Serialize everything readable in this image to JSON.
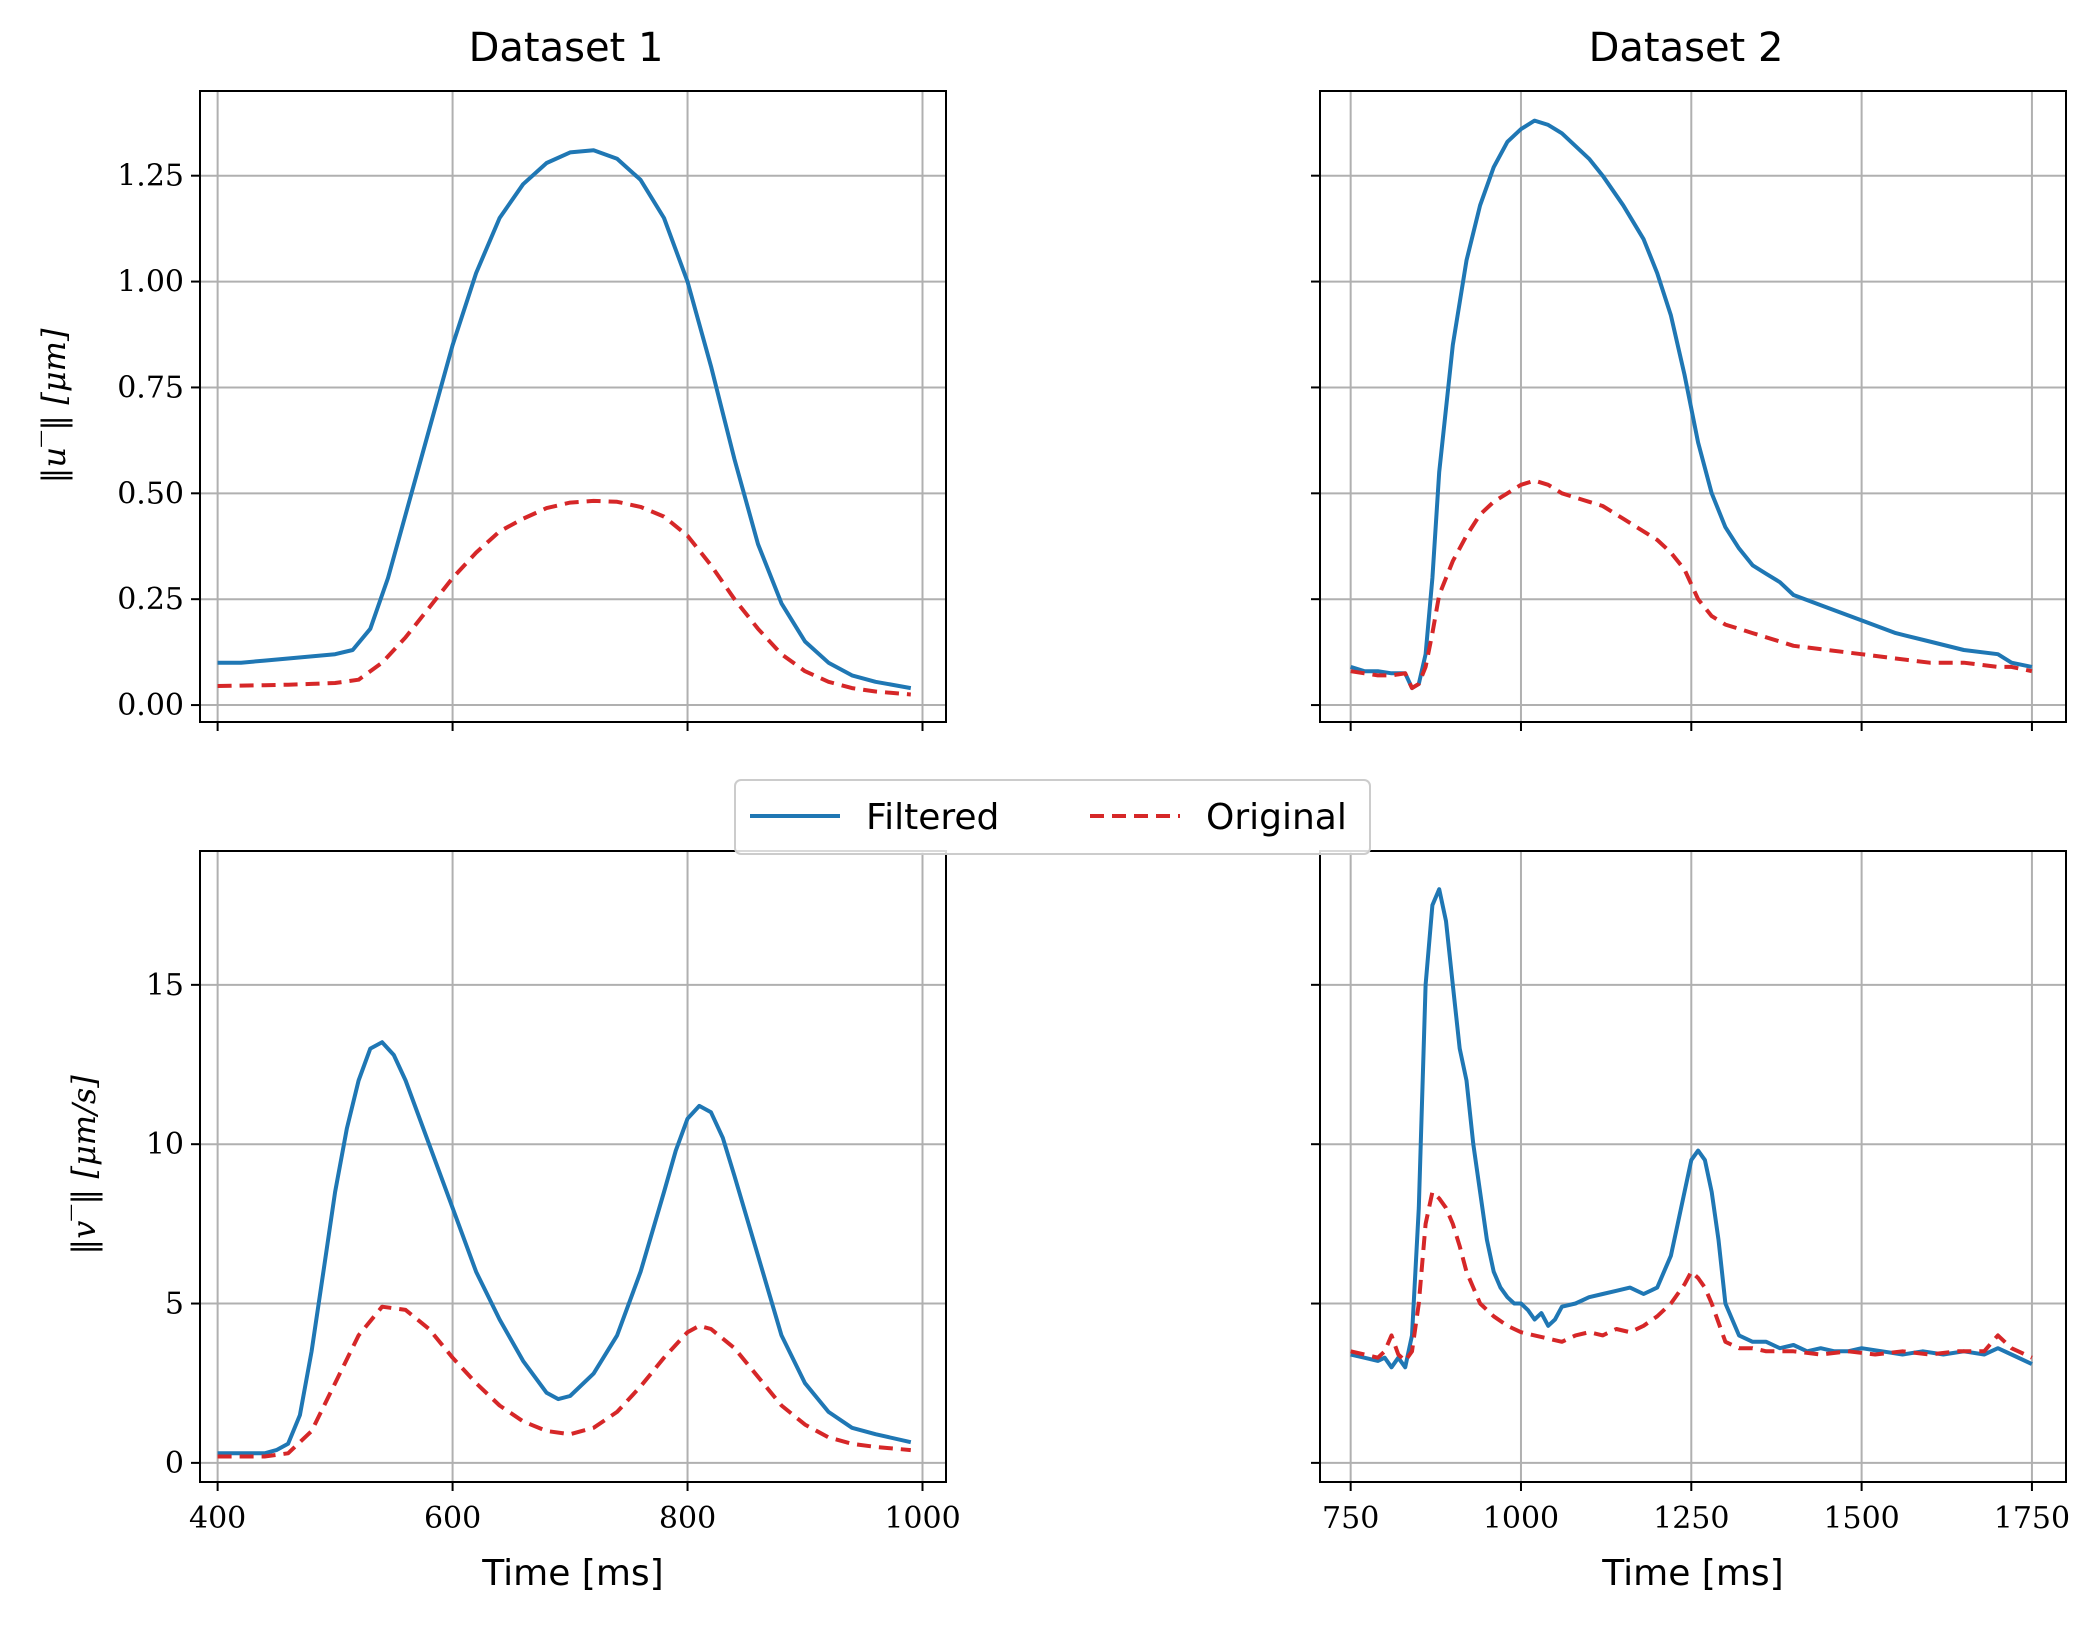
{
  "legend": {
    "items": [
      {
        "label": "Filtered",
        "color": "#1f77b4",
        "style": "solid"
      },
      {
        "label": "Original",
        "color": "#d62728",
        "style": "dashed"
      }
    ]
  },
  "chart_data": [
    {
      "type": "line",
      "title": "Dataset 1",
      "xlabel": "",
      "ylabel": "‖u‾‖ [μm]",
      "xlim": [
        385,
        1020
      ],
      "ylim": [
        -0.04,
        1.45
      ],
      "xticks": [
        400,
        600,
        800,
        1000
      ],
      "xtick_labels": [
        "",
        "",
        "",
        ""
      ],
      "yticks": [
        0,
        0.25,
        0.5,
        0.75,
        1.0,
        1.25
      ],
      "ytick_labels": [
        "0.00",
        "0.25",
        "0.50",
        "0.75",
        "1.00",
        "1.25"
      ],
      "grid": true,
      "series": [
        {
          "name": "Filtered",
          "color": "#1f77b4",
          "style": "solid",
          "x": [
            400,
            420,
            440,
            460,
            480,
            500,
            515,
            530,
            545,
            560,
            580,
            600,
            620,
            640,
            660,
            680,
            700,
            720,
            740,
            760,
            780,
            800,
            820,
            840,
            860,
            880,
            900,
            920,
            940,
            960,
            990
          ],
          "y": [
            0.1,
            0.1,
            0.105,
            0.11,
            0.115,
            0.12,
            0.13,
            0.18,
            0.3,
            0.45,
            0.65,
            0.85,
            1.02,
            1.15,
            1.23,
            1.28,
            1.305,
            1.31,
            1.29,
            1.24,
            1.15,
            1.0,
            0.8,
            0.58,
            0.38,
            0.24,
            0.15,
            0.1,
            0.07,
            0.055,
            0.04
          ]
        },
        {
          "name": "Original",
          "color": "#d62728",
          "style": "dashed",
          "x": [
            400,
            420,
            440,
            460,
            480,
            500,
            520,
            540,
            560,
            580,
            600,
            620,
            640,
            660,
            680,
            700,
            720,
            740,
            760,
            780,
            800,
            820,
            840,
            860,
            880,
            900,
            920,
            940,
            960,
            990
          ],
          "y": [
            0.045,
            0.046,
            0.047,
            0.048,
            0.05,
            0.052,
            0.06,
            0.1,
            0.16,
            0.23,
            0.3,
            0.36,
            0.41,
            0.44,
            0.465,
            0.478,
            0.482,
            0.48,
            0.468,
            0.445,
            0.4,
            0.33,
            0.25,
            0.18,
            0.12,
            0.08,
            0.055,
            0.04,
            0.032,
            0.025
          ]
        }
      ]
    },
    {
      "type": "line",
      "title": "Dataset 2",
      "xlabel": "",
      "ylabel": "",
      "xlim": [
        705,
        1800
      ],
      "ylim": [
        -0.04,
        1.45
      ],
      "xticks": [
        750,
        1000,
        1250,
        1500,
        1750
      ],
      "xtick_labels": [
        "",
        "",
        "",
        "",
        ""
      ],
      "yticks": [
        0,
        0.25,
        0.5,
        0.75,
        1.0,
        1.25
      ],
      "ytick_labels": [
        "",
        "",
        "",
        "",
        "",
        ""
      ],
      "grid": true,
      "series": [
        {
          "name": "Filtered",
          "color": "#1f77b4",
          "style": "solid",
          "x": [
            750,
            770,
            790,
            810,
            830,
            840,
            850,
            860,
            870,
            880,
            900,
            920,
            940,
            960,
            980,
            1000,
            1020,
            1040,
            1060,
            1080,
            1100,
            1120,
            1150,
            1180,
            1200,
            1220,
            1240,
            1260,
            1280,
            1300,
            1320,
            1340,
            1360,
            1380,
            1400,
            1450,
            1500,
            1550,
            1600,
            1650,
            1700,
            1720,
            1750
          ],
          "y": [
            0.09,
            0.08,
            0.08,
            0.075,
            0.075,
            0.04,
            0.05,
            0.12,
            0.3,
            0.55,
            0.85,
            1.05,
            1.18,
            1.27,
            1.33,
            1.36,
            1.38,
            1.37,
            1.35,
            1.32,
            1.29,
            1.25,
            1.18,
            1.1,
            1.02,
            0.92,
            0.78,
            0.62,
            0.5,
            0.42,
            0.37,
            0.33,
            0.31,
            0.29,
            0.26,
            0.23,
            0.2,
            0.17,
            0.15,
            0.13,
            0.12,
            0.1,
            0.09
          ]
        },
        {
          "name": "Original",
          "color": "#d62728",
          "style": "dashed",
          "x": [
            750,
            770,
            790,
            810,
            830,
            840,
            850,
            860,
            870,
            880,
            900,
            920,
            940,
            960,
            980,
            1000,
            1020,
            1040,
            1060,
            1080,
            1100,
            1120,
            1150,
            1180,
            1200,
            1220,
            1240,
            1260,
            1280,
            1300,
            1320,
            1340,
            1360,
            1380,
            1400,
            1450,
            1500,
            1550,
            1600,
            1650,
            1700,
            1720,
            1750
          ],
          "y": [
            0.08,
            0.075,
            0.07,
            0.07,
            0.075,
            0.04,
            0.05,
            0.09,
            0.17,
            0.26,
            0.34,
            0.4,
            0.45,
            0.48,
            0.5,
            0.52,
            0.53,
            0.52,
            0.5,
            0.49,
            0.48,
            0.47,
            0.44,
            0.41,
            0.39,
            0.36,
            0.32,
            0.25,
            0.21,
            0.19,
            0.18,
            0.17,
            0.16,
            0.15,
            0.14,
            0.13,
            0.12,
            0.11,
            0.1,
            0.1,
            0.09,
            0.09,
            0.08
          ]
        }
      ]
    },
    {
      "type": "line",
      "title": "",
      "xlabel": "Time [ms]",
      "ylabel": "‖v‾‖ [μm/s]",
      "xlim": [
        385,
        1020
      ],
      "ylim": [
        -0.6,
        19.2
      ],
      "xticks": [
        400,
        600,
        800,
        1000
      ],
      "xtick_labels": [
        "400",
        "600",
        "800",
        "1000"
      ],
      "yticks": [
        0,
        5,
        10,
        15
      ],
      "ytick_labels": [
        "0",
        "5",
        "10",
        "15"
      ],
      "grid": true,
      "series": [
        {
          "name": "Filtered",
          "color": "#1f77b4",
          "style": "solid",
          "x": [
            400,
            420,
            440,
            450,
            460,
            470,
            480,
            490,
            500,
            510,
            520,
            530,
            540,
            550,
            560,
            580,
            600,
            620,
            640,
            660,
            680,
            690,
            700,
            720,
            740,
            760,
            780,
            790,
            800,
            810,
            820,
            830,
            840,
            860,
            880,
            900,
            920,
            940,
            960,
            990
          ],
          "y": [
            0.3,
            0.3,
            0.3,
            0.4,
            0.6,
            1.5,
            3.5,
            6.0,
            8.5,
            10.5,
            12.0,
            13.0,
            13.2,
            12.8,
            12.0,
            10.0,
            8.0,
            6.0,
            4.5,
            3.2,
            2.2,
            2.0,
            2.1,
            2.8,
            4.0,
            6.0,
            8.5,
            9.8,
            10.8,
            11.2,
            11.0,
            10.2,
            9.0,
            6.5,
            4.0,
            2.5,
            1.6,
            1.1,
            0.9,
            0.65
          ]
        },
        {
          "name": "Original",
          "color": "#d62728",
          "style": "dashed",
          "x": [
            400,
            420,
            440,
            460,
            480,
            500,
            520,
            540,
            560,
            580,
            600,
            620,
            640,
            660,
            680,
            700,
            720,
            740,
            760,
            780,
            800,
            810,
            820,
            840,
            860,
            880,
            900,
            920,
            940,
            960,
            990
          ],
          "y": [
            0.2,
            0.2,
            0.2,
            0.3,
            1.0,
            2.5,
            4.0,
            4.9,
            4.8,
            4.2,
            3.3,
            2.5,
            1.8,
            1.3,
            1.0,
            0.9,
            1.1,
            1.6,
            2.4,
            3.3,
            4.1,
            4.3,
            4.2,
            3.6,
            2.7,
            1.8,
            1.2,
            0.8,
            0.6,
            0.5,
            0.4
          ]
        }
      ]
    },
    {
      "type": "line",
      "title": "",
      "xlabel": "Time [ms]",
      "ylabel": "",
      "xlim": [
        705,
        1800
      ],
      "ylim": [
        -0.6,
        19.2
      ],
      "xticks": [
        750,
        1000,
        1250,
        1500,
        1750
      ],
      "xtick_labels": [
        "750",
        "1000",
        "1250",
        "1500",
        "1750"
      ],
      "yticks": [
        0,
        5,
        10,
        15
      ],
      "ytick_labels": [
        "",
        "",
        "",
        ""
      ],
      "grid": true,
      "series": [
        {
          "name": "Filtered",
          "color": "#1f77b4",
          "style": "solid",
          "x": [
            750,
            770,
            790,
            800,
            810,
            820,
            830,
            840,
            850,
            860,
            870,
            880,
            890,
            900,
            910,
            920,
            930,
            940,
            950,
            960,
            970,
            980,
            990,
            1000,
            1010,
            1020,
            1030,
            1040,
            1050,
            1060,
            1080,
            1100,
            1120,
            1140,
            1160,
            1180,
            1200,
            1210,
            1220,
            1230,
            1240,
            1250,
            1260,
            1270,
            1280,
            1290,
            1300,
            1320,
            1340,
            1360,
            1380,
            1400,
            1420,
            1440,
            1460,
            1480,
            1500,
            1530,
            1560,
            1590,
            1620,
            1650,
            1680,
            1700,
            1720,
            1750
          ],
          "y": [
            3.4,
            3.3,
            3.2,
            3.3,
            3.0,
            3.3,
            3.0,
            4.0,
            8.0,
            15.0,
            17.5,
            18.0,
            17.0,
            15.0,
            13.0,
            12.0,
            10.0,
            8.5,
            7.0,
            6.0,
            5.5,
            5.2,
            5.0,
            5.0,
            4.8,
            4.5,
            4.7,
            4.3,
            4.5,
            4.9,
            5.0,
            5.2,
            5.3,
            5.4,
            5.5,
            5.3,
            5.5,
            6.0,
            6.5,
            7.5,
            8.5,
            9.5,
            9.8,
            9.5,
            8.5,
            7.0,
            5.0,
            4.0,
            3.8,
            3.8,
            3.6,
            3.7,
            3.5,
            3.6,
            3.5,
            3.5,
            3.6,
            3.5,
            3.4,
            3.5,
            3.4,
            3.5,
            3.4,
            3.6,
            3.4,
            3.1
          ]
        },
        {
          "name": "Original",
          "color": "#d62728",
          "style": "dashed",
          "x": [
            750,
            770,
            790,
            800,
            810,
            820,
            830,
            840,
            850,
            860,
            870,
            880,
            890,
            900,
            910,
            920,
            930,
            940,
            950,
            960,
            980,
            1000,
            1020,
            1040,
            1060,
            1080,
            1100,
            1120,
            1140,
            1160,
            1180,
            1200,
            1220,
            1240,
            1250,
            1260,
            1270,
            1280,
            1300,
            1320,
            1340,
            1360,
            1400,
            1440,
            1480,
            1520,
            1560,
            1600,
            1640,
            1680,
            1700,
            1720,
            1750
          ],
          "y": [
            3.5,
            3.4,
            3.3,
            3.5,
            4.0,
            3.4,
            3.2,
            3.5,
            5.0,
            7.5,
            8.5,
            8.3,
            8.0,
            7.5,
            6.8,
            6.0,
            5.5,
            5.0,
            4.8,
            4.6,
            4.3,
            4.1,
            4.0,
            3.9,
            3.8,
            4.0,
            4.1,
            4.0,
            4.2,
            4.1,
            4.3,
            4.6,
            5.0,
            5.6,
            6.0,
            5.8,
            5.5,
            5.0,
            3.8,
            3.6,
            3.6,
            3.5,
            3.5,
            3.4,
            3.5,
            3.4,
            3.5,
            3.4,
            3.5,
            3.5,
            4.0,
            3.6,
            3.3
          ]
        }
      ]
    }
  ]
}
